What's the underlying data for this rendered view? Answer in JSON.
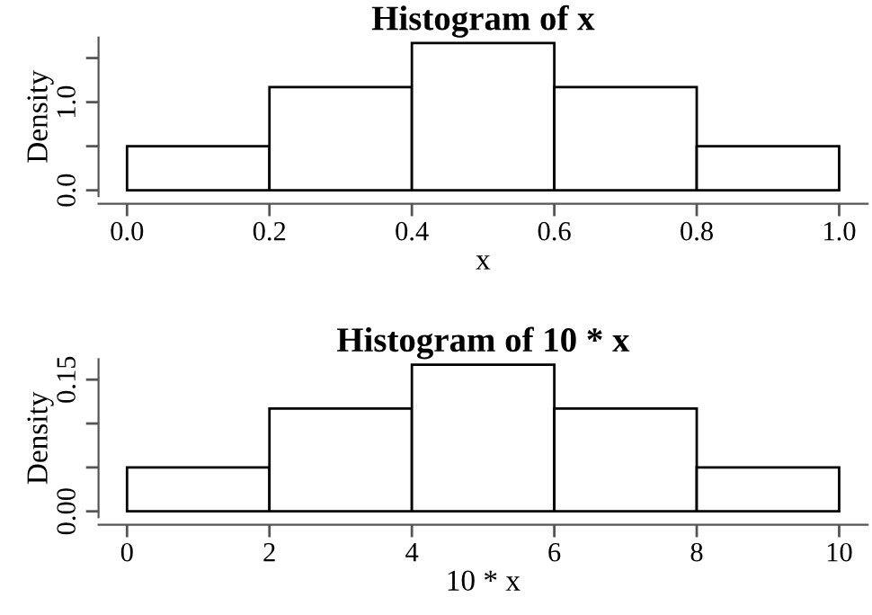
{
  "chart_data": [
    {
      "type": "histogram",
      "title": "Histogram of x",
      "xlabel": "x",
      "ylabel": "Density",
      "bins": [
        0,
        0.2,
        0.4,
        0.6,
        0.8,
        1.0
      ],
      "values": [
        0.5,
        1.17,
        1.67,
        1.17,
        0.5
      ],
      "color": "#ffffff",
      "xlim": [
        -0.04,
        1.04
      ],
      "ylim": [
        -0.067,
        1.733
      ],
      "xticks": [
        {
          "value": 0,
          "label": "0.0"
        },
        0.2,
        0.4,
        0.6,
        0.8,
        {
          "value": 1,
          "label": "1.0"
        }
      ],
      "yticks": [
        {
          "value": 0,
          "label": "0.0"
        },
        {
          "value": 0.5,
          "label": null
        },
        {
          "value": 1,
          "label": "1.0"
        },
        {
          "value": 1.5,
          "label": null
        }
      ],
      "grid": false
    },
    {
      "type": "histogram",
      "title": "Histogram of 10 * x",
      "xlabel": "10 * x",
      "ylabel": "Density",
      "bins": [
        0,
        2,
        4,
        6,
        8,
        10
      ],
      "values": [
        0.05,
        0.117,
        0.167,
        0.117,
        0.05
      ],
      "color": "#ffffff",
      "xlim": [
        -0.4,
        10.4
      ],
      "ylim": [
        -0.0067,
        0.1733
      ],
      "xticks": [
        0,
        2,
        4,
        6,
        8,
        10
      ],
      "yticks": [
        {
          "value": 0,
          "label": "0.00"
        },
        {
          "value": 0.05,
          "label": null
        },
        {
          "value": 0.1,
          "label": null
        },
        0.15
      ],
      "grid": false
    }
  ]
}
